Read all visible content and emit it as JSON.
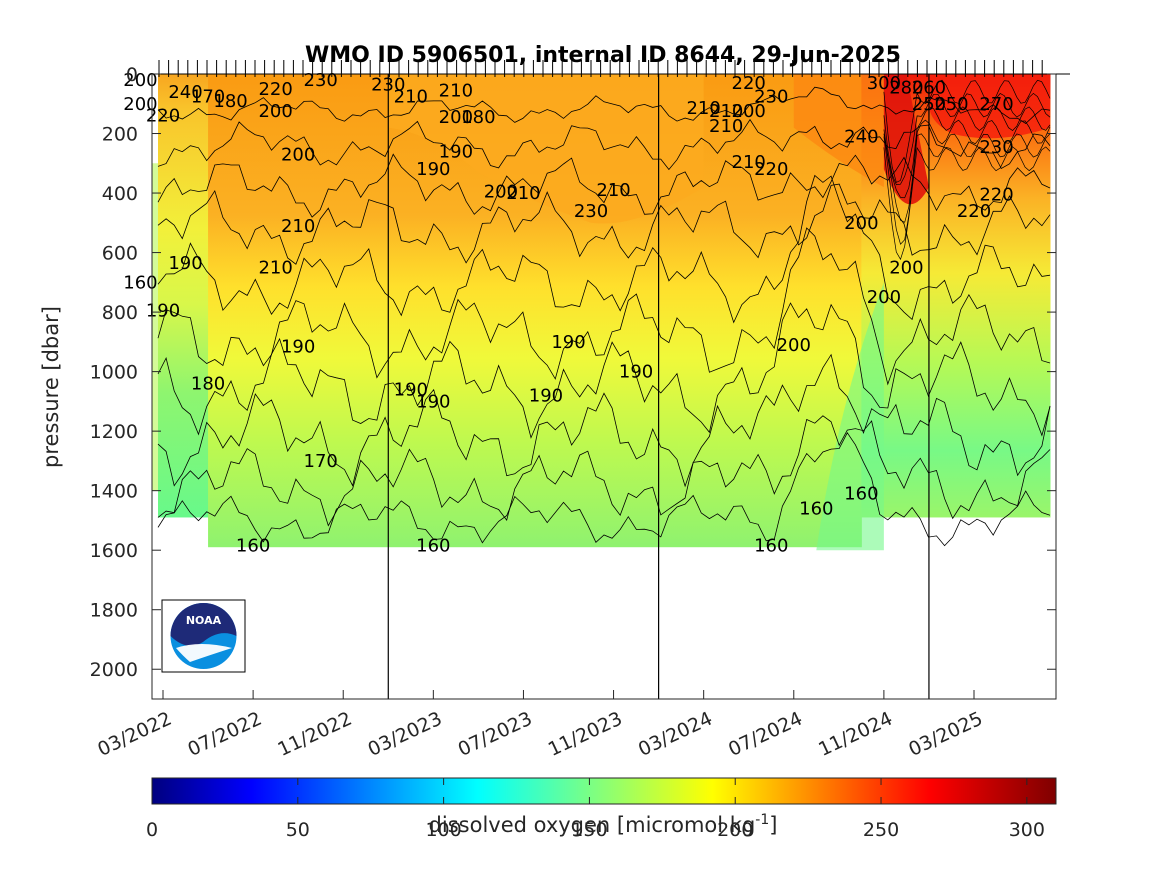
{
  "chart_data": {
    "type": "heatmap",
    "title": "WMO ID 5906501, internal ID 8644, 29-Jun-2025",
    "ylabel": "pressure [dbar]",
    "colorbar_label": "dissolved oxygen [micromol kg",
    "colorbar_label_exponent": "-1",
    "colorbar_label_end": "]",
    "y_axis": {
      "reversed": true,
      "ylim": [
        0,
        2100
      ],
      "ticks": [
        "0",
        "200",
        "400",
        "600",
        "800",
        "1000",
        "1200",
        "1400",
        "1600",
        "1800",
        "2000"
      ]
    },
    "x_axis": {
      "ticks": [
        "03/2022",
        "07/2022",
        "11/2022",
        "03/2023",
        "07/2023",
        "11/2023",
        "03/2024",
        "07/2024",
        "11/2024",
        "03/2025"
      ]
    },
    "color_scale": {
      "min": 0,
      "max": 310,
      "ticks": [
        "0",
        "50",
        "100",
        "150",
        "200",
        "250",
        "300"
      ],
      "colormap": "jet"
    },
    "year_boundaries": [
      "01/2023",
      "01/2024",
      "01/2025"
    ],
    "max_profile_depth": [
      {
        "from": "02/2022",
        "to": "05/2022",
        "depth": 1490
      },
      {
        "from": "05/2022",
        "to": "10/2024",
        "depth": 1590
      },
      {
        "from": "10/2024",
        "to": "06/2025",
        "depth": 1490
      }
    ],
    "contour_labels": [
      {
        "text": "200",
        "date": "02/2022",
        "p": 20
      },
      {
        "text": "200",
        "date": "02/2022",
        "p": 100
      },
      {
        "text": "220",
        "date": "03/2022",
        "p": 140
      },
      {
        "text": "240",
        "date": "04/2022",
        "p": 60
      },
      {
        "text": "170",
        "date": "05/2022",
        "p": 75
      },
      {
        "text": "180",
        "date": "06/2022",
        "p": 90
      },
      {
        "text": "220",
        "date": "08/2022",
        "p": 50
      },
      {
        "text": "200",
        "date": "08/2022",
        "p": 125
      },
      {
        "text": "200",
        "date": "09/2022",
        "p": 270
      },
      {
        "text": "230",
        "date": "10/2022",
        "p": 20
      },
      {
        "text": "230",
        "date": "01/2023",
        "p": 35
      },
      {
        "text": "210",
        "date": "02/2023",
        "p": 75
      },
      {
        "text": "210",
        "date": "04/2023",
        "p": 55
      },
      {
        "text": "200",
        "date": "04/2023",
        "p": 145
      },
      {
        "text": "180",
        "date": "05/2023",
        "p": 145
      },
      {
        "text": "190",
        "date": "04/2023",
        "p": 260
      },
      {
        "text": "190",
        "date": "03/2023",
        "p": 320
      },
      {
        "text": "200",
        "date": "06/2023",
        "p": 395
      },
      {
        "text": "210",
        "date": "07/2023",
        "p": 400
      },
      {
        "text": "230",
        "date": "10/2023",
        "p": 460
      },
      {
        "text": "210",
        "date": "11/2023",
        "p": 390
      },
      {
        "text": "210",
        "date": "03/2024",
        "p": 115
      },
      {
        "text": "210",
        "date": "04/2024",
        "p": 175
      },
      {
        "text": "210",
        "date": "04/2024",
        "p": 125
      },
      {
        "text": "200",
        "date": "05/2024",
        "p": 125
      },
      {
        "text": "220",
        "date": "05/2024",
        "p": 30
      },
      {
        "text": "230",
        "date": "06/2024",
        "p": 75
      },
      {
        "text": "210",
        "date": "05/2024",
        "p": 295
      },
      {
        "text": "220",
        "date": "06/2024",
        "p": 320
      },
      {
        "text": "240",
        "date": "10/2024",
        "p": 210
      },
      {
        "text": "300",
        "date": "11/2024",
        "p": 30
      },
      {
        "text": "280",
        "date": "12/2024",
        "p": 45
      },
      {
        "text": "260",
        "date": "01/2025",
        "p": 45
      },
      {
        "text": "250",
        "date": "01/2025",
        "p": 100
      },
      {
        "text": "250",
        "date": "02/2025",
        "p": 100
      },
      {
        "text": "270",
        "date": "04/2025",
        "p": 100
      },
      {
        "text": "230",
        "date": "04/2025",
        "p": 245
      },
      {
        "text": "220",
        "date": "04/2025",
        "p": 405
      },
      {
        "text": "220",
        "date": "03/2025",
        "p": 460
      },
      {
        "text": "200",
        "date": "10/2024",
        "p": 500
      },
      {
        "text": "200",
        "date": "12/2024",
        "p": 650
      },
      {
        "text": "200",
        "date": "11/2024",
        "p": 750
      },
      {
        "text": "210",
        "date": "09/2022",
        "p": 510
      },
      {
        "text": "210",
        "date": "08/2022",
        "p": 650
      },
      {
        "text": "190",
        "date": "04/2022",
        "p": 635
      },
      {
        "text": "160",
        "date": "02/2022",
        "p": 700
      },
      {
        "text": "190",
        "date": "03/2022",
        "p": 795
      },
      {
        "text": "190",
        "date": "09/2022",
        "p": 915
      },
      {
        "text": "180",
        "date": "05/2022",
        "p": 1040
      },
      {
        "text": "190",
        "date": "02/2023",
        "p": 1060
      },
      {
        "text": "190",
        "date": "03/2023",
        "p": 1100
      },
      {
        "text": "190",
        "date": "08/2023",
        "p": 1080
      },
      {
        "text": "190",
        "date": "09/2023",
        "p": 900
      },
      {
        "text": "190",
        "date": "12/2023",
        "p": 1000
      },
      {
        "text": "200",
        "date": "07/2024",
        "p": 910
      },
      {
        "text": "170",
        "date": "10/2022",
        "p": 1300
      },
      {
        "text": "160",
        "date": "08/2024",
        "p": 1460
      },
      {
        "text": "160",
        "date": "10/2024",
        "p": 1410
      },
      {
        "text": "160",
        "date": "07/2022",
        "p": 1585
      },
      {
        "text": "160",
        "date": "03/2023",
        "p": 1585
      },
      {
        "text": "160",
        "date": "06/2024",
        "p": 1585
      }
    ]
  },
  "logo": {
    "text": "NOAA"
  }
}
